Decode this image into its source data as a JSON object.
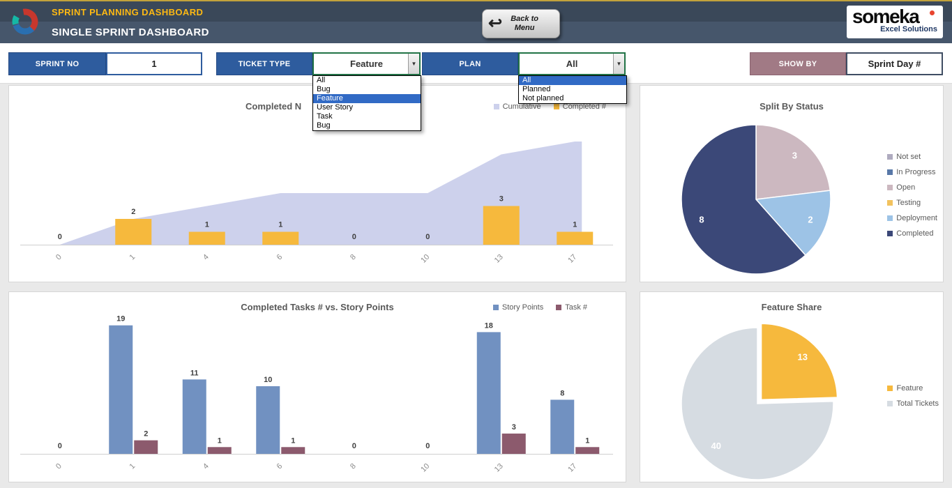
{
  "header": {
    "app_title": "SPRINT PLANNING DASHBOARD",
    "page_title": "SINGLE SPRINT DASHBOARD",
    "back_button": "Back to Menu",
    "brand_name": "someka",
    "brand_tagline": "Excel Solutions"
  },
  "filters": {
    "sprint_no": {
      "label": "SPRINT NO",
      "value": "1"
    },
    "ticket_type": {
      "label": "TICKET TYPE",
      "value": "Feature",
      "options": [
        "All",
        "Bug",
        "Feature",
        "User Story",
        "Task",
        "Bug"
      ],
      "selected_index": 2
    },
    "plan": {
      "label": "PLAN",
      "value": "All",
      "options": [
        "All",
        "Planned",
        "Not planned"
      ],
      "selected_index": 0
    },
    "show_by": {
      "label": "SHOW BY",
      "value": "Sprint Day #"
    }
  },
  "chart_data": [
    {
      "type": "area",
      "title": "Completed N",
      "categories": [
        "0",
        "1",
        "4",
        "6",
        "8",
        "10",
        "13",
        "17"
      ],
      "series": [
        {
          "name": "Cumulative",
          "type": "area",
          "color": "#cdd1ec",
          "values": [
            0,
            2,
            3,
            4,
            4,
            4,
            7,
            8
          ]
        },
        {
          "name": "Completed #",
          "type": "bar",
          "color": "#f6b93d",
          "values": [
            0,
            2,
            1,
            1,
            0,
            0,
            3,
            1
          ]
        }
      ],
      "ylim": [
        0,
        8
      ],
      "legend_position": "top-right",
      "grid": false
    },
    {
      "type": "pie",
      "title": "Split By Status",
      "legend": [
        {
          "label": "Not set",
          "color": "#afabbf"
        },
        {
          "label": "In Progress",
          "color": "#5878a8"
        },
        {
          "label": "Open",
          "color": "#ccb8c0"
        },
        {
          "label": "Testing",
          "color": "#f2c25e"
        },
        {
          "label": "Deployment",
          "color": "#9dc3e6"
        },
        {
          "label": "Completed",
          "color": "#3b4878"
        }
      ],
      "slices": [
        {
          "label": "Open",
          "value": 3,
          "color": "#ccb8c0"
        },
        {
          "label": "Deployment",
          "value": 2,
          "color": "#9dc3e6"
        },
        {
          "label": "Completed",
          "value": 8,
          "color": "#3b4878"
        }
      ],
      "legend_position": "right"
    },
    {
      "type": "bar",
      "title": "Completed Tasks # vs. Story Points",
      "categories": [
        "0",
        "1",
        "4",
        "6",
        "8",
        "10",
        "13",
        "17"
      ],
      "series": [
        {
          "name": "Story Points",
          "color": "#7191c1",
          "values": [
            0,
            19,
            11,
            10,
            0,
            0,
            18,
            8
          ]
        },
        {
          "name": "Task #",
          "color": "#8c5a6d",
          "values": [
            0,
            2,
            1,
            1,
            0,
            0,
            3,
            1
          ]
        }
      ],
      "ylim": [
        0,
        19
      ],
      "legend_position": "top-right",
      "grid": false
    },
    {
      "type": "pie",
      "title": "Feature Share",
      "legend": [
        {
          "label": "Feature",
          "color": "#f6b93d"
        },
        {
          "label": "Total Tickets",
          "color": "#d6dce2"
        }
      ],
      "slices": [
        {
          "label": "Feature",
          "value": 13,
          "color": "#f6b93d",
          "explode": true
        },
        {
          "label": "Total Tickets",
          "value": 40,
          "color": "#d6dce2"
        }
      ],
      "legend_position": "right"
    }
  ]
}
